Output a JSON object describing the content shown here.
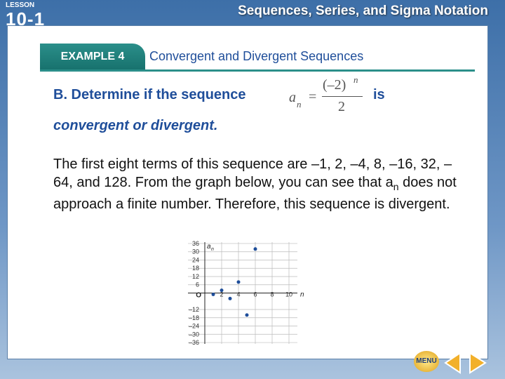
{
  "header": {
    "lesson_word": "LESSON",
    "lesson_number": "10-1",
    "title": "Sequences, Series, and Sigma Notation"
  },
  "example": {
    "label": "EXAMPLE 4",
    "title": "Convergent and Divergent Sequences"
  },
  "question": {
    "lead": "B. Determine if the sequence",
    "formula": {
      "a": "a",
      "sub": "n",
      "eq": "=",
      "num": "(–2)",
      "exp": "n",
      "den": "2"
    },
    "tail": "is",
    "line2": "convergent or divergent."
  },
  "answer": {
    "part1": "The first eight terms of this sequence are –1, 2, –4, 8, –16, 32, –64, and 128. From the graph below, you can see that a",
    "sub": "n",
    "part2": " does not approach a finite number. Therefore, this sequence is divergent."
  },
  "graph": {
    "y_label": "a",
    "y_label_sub": "n",
    "x_label": "n",
    "origin_label": "O",
    "xlim": [
      -2,
      11
    ],
    "ylim": [
      -37,
      37
    ],
    "xticks": [
      2,
      4,
      6,
      8,
      10
    ],
    "yticks": [
      36,
      30,
      24,
      18,
      12,
      6,
      {
        "value": -12,
        "label": "–12"
      },
      {
        "value": -18,
        "label": "–18"
      },
      {
        "value": -24,
        "label": "–24"
      },
      {
        "value": -30,
        "label": "–30"
      },
      {
        "value": -36,
        "label": "–36"
      }
    ],
    "points": {
      "x": [
        1,
        2,
        3,
        4,
        5,
        6
      ],
      "y": [
        -1,
        2,
        -4,
        8,
        -16,
        32
      ]
    }
  },
  "nav": {
    "menu": "MENU"
  }
}
